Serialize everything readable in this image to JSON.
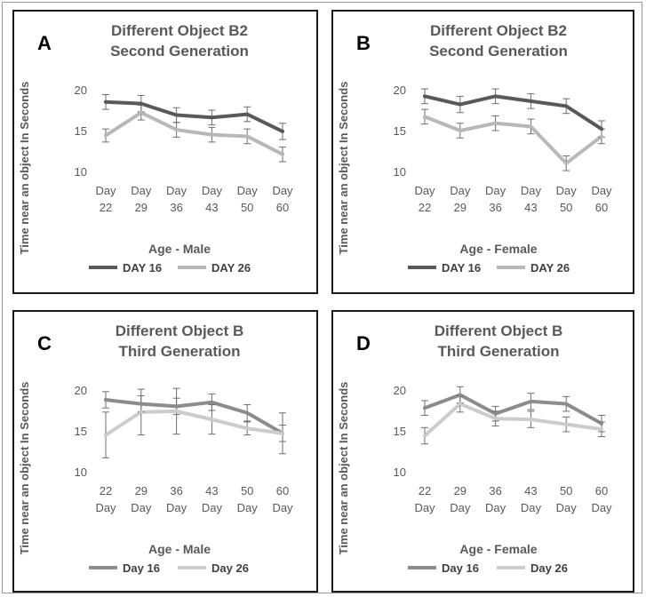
{
  "ylabel": "Time near an object  In Seconds",
  "chart_data": [
    {
      "type": "line",
      "panel": "A",
      "title": [
        "Different Object B2",
        "Second Generation"
      ],
      "xlabel": "Age - Male",
      "ylabel": "Time near an object  In Seconds",
      "categories": [
        [
          "Day",
          "22"
        ],
        [
          "Day",
          "29"
        ],
        [
          "Day",
          "36"
        ],
        [
          "Day",
          "43"
        ],
        [
          "Day",
          "50"
        ],
        [
          "Day",
          "60"
        ]
      ],
      "yticks": [
        "20",
        "15",
        "10"
      ],
      "ylim": [
        10,
        20
      ],
      "series": [
        {
          "name": "DAY 16",
          "color": "#595959",
          "values": [
            18.5,
            18.3,
            16.9,
            16.6,
            17.0,
            14.9
          ],
          "err": [
            0.9,
            1.0,
            0.9,
            0.9,
            0.9,
            1.0
          ]
        },
        {
          "name": "DAY 26",
          "color": "#b8b8b8",
          "values": [
            14.4,
            17.2,
            15.1,
            14.5,
            14.3,
            12.1
          ],
          "err": [
            0.8,
            0.9,
            0.9,
            0.9,
            0.9,
            0.9
          ]
        }
      ]
    },
    {
      "type": "line",
      "panel": "B",
      "title": [
        "Different Object B2",
        "Second Generation"
      ],
      "xlabel": "Age - Female",
      "ylabel": "Time near an object  In Seconds",
      "categories": [
        [
          "Day",
          "22"
        ],
        [
          "Day",
          "29"
        ],
        [
          "Day",
          "36"
        ],
        [
          "Day",
          "43"
        ],
        [
          "Day",
          "50"
        ],
        [
          "Day",
          "60"
        ]
      ],
      "yticks": [
        "20",
        "15",
        "10"
      ],
      "ylim": [
        10,
        20
      ],
      "series": [
        {
          "name": "DAY 16",
          "color": "#595959",
          "values": [
            19.2,
            18.2,
            19.2,
            18.6,
            18.0,
            15.2
          ],
          "err": [
            0.9,
            1.0,
            0.9,
            0.9,
            0.9,
            1.0
          ]
        },
        {
          "name": "DAY 26",
          "color": "#b8b8b8",
          "values": [
            16.7,
            15.0,
            15.9,
            15.5,
            11.0,
            14.3
          ],
          "err": [
            0.9,
            0.9,
            0.9,
            0.9,
            0.9,
            0.9
          ]
        }
      ]
    },
    {
      "type": "line",
      "panel": "C",
      "title": [
        "Different Object B",
        "Third Generation"
      ],
      "xlabel": "Age - Male",
      "ylabel": "Time near an object  In Seconds",
      "categories": [
        [
          "22",
          "Day"
        ],
        [
          "29",
          "Day"
        ],
        [
          "36",
          "Day"
        ],
        [
          "43",
          "Day"
        ],
        [
          "50",
          "Day"
        ],
        [
          "60",
          "Day"
        ]
      ],
      "yticks": [
        "20",
        "15",
        "10"
      ],
      "ylim": [
        10,
        20
      ],
      "series": [
        {
          "name": "Day 16",
          "color": "#8c8c8c",
          "values": [
            18.8,
            18.3,
            18.0,
            18.5,
            17.2,
            14.7
          ],
          "err": [
            1.0,
            1.0,
            1.0,
            1.0,
            1.0,
            1.0
          ]
        },
        {
          "name": "Day 26",
          "color": "#cccccc",
          "values": [
            14.5,
            17.3,
            17.4,
            16.4,
            15.3,
            14.7
          ],
          "err": [
            2.8,
            2.8,
            2.8,
            1.8,
            0.8,
            2.5
          ]
        }
      ]
    },
    {
      "type": "line",
      "panel": "D",
      "title": [
        "Different Object B",
        "Third Generation"
      ],
      "xlabel": "Age - Female",
      "ylabel": "Time near an object  In Seconds",
      "categories": [
        [
          "22",
          "Day"
        ],
        [
          "29",
          "Day"
        ],
        [
          "36",
          "Day"
        ],
        [
          "43",
          "Day"
        ],
        [
          "50",
          "Day"
        ],
        [
          "60",
          "Day"
        ]
      ],
      "yticks": [
        "20",
        "15",
        "10"
      ],
      "ylim": [
        10,
        20
      ],
      "series": [
        {
          "name": "Day 16",
          "color": "#8c8c8c",
          "values": [
            17.8,
            19.4,
            17.1,
            18.6,
            18.3,
            15.9
          ],
          "err": [
            0.9,
            1.0,
            0.9,
            1.0,
            0.9,
            1.0
          ]
        },
        {
          "name": "Day 26",
          "color": "#cccccc",
          "values": [
            14.4,
            18.3,
            16.5,
            16.4,
            15.8,
            15.2
          ],
          "err": [
            1.0,
            1.0,
            0.9,
            1.0,
            0.9,
            0.9
          ]
        }
      ]
    }
  ]
}
